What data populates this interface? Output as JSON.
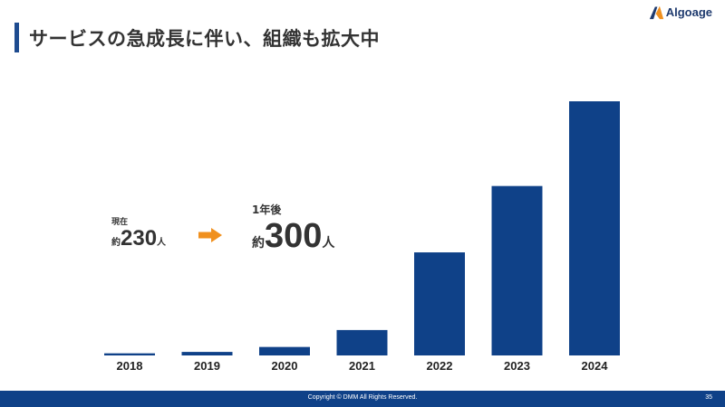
{
  "header": {
    "title": "サービスの急成長に伴い、組織も拡大中"
  },
  "logo": {
    "text": "Algoage"
  },
  "colors": {
    "bar": "#0f4188",
    "accent": "#1e4b8f",
    "arrow": "#f0901e",
    "footer": "#0f4188"
  },
  "stats": {
    "current_label": "現在",
    "current_prefix": "約",
    "current_value": "230",
    "current_suffix": "人",
    "future_label": "1年後",
    "future_prefix": "約",
    "future_value": "300",
    "future_suffix": "人"
  },
  "chart_data": {
    "type": "bar",
    "categories": [
      "2018",
      "2019",
      "2020",
      "2021",
      "2022",
      "2023",
      "2024"
    ],
    "values": [
      3,
      5,
      12,
      36,
      146,
      240,
      360
    ],
    "title": "",
    "xlabel": "",
    "ylabel": "",
    "grid": false
  },
  "footer": {
    "copyright": "Copyright © DMM All Rights Reserved.",
    "page": "35"
  }
}
